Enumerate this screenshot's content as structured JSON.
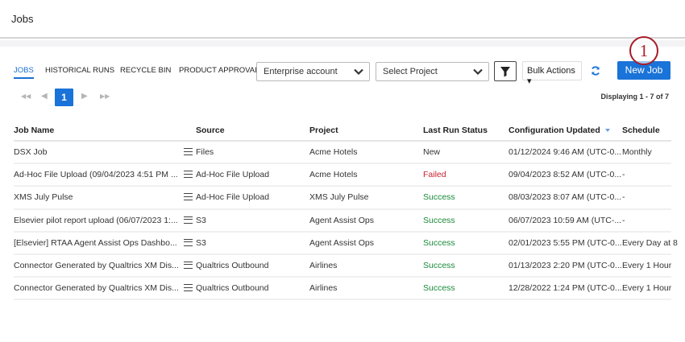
{
  "header": {
    "title": "Jobs"
  },
  "tabs": [
    {
      "label": "JOBS",
      "active": true
    },
    {
      "label": "HISTORICAL RUNS"
    },
    {
      "label": "RECYCLE BIN"
    },
    {
      "label": "PRODUCT APPROVAL"
    }
  ],
  "toolbar": {
    "account_select": "Enterprise account",
    "project_select": "Select Project",
    "filter_icon": "funnel-icon",
    "bulk_actions": "Bulk Actions ▾",
    "refresh_icon": "refresh-icon",
    "new_job": "New Job",
    "callout": "1"
  },
  "pagination": {
    "current": "1",
    "displaying": "Displaying 1 - 7 of 7"
  },
  "colors": {
    "accent": "#1a73d8",
    "failed": "#c8202f",
    "success": "#1a8a3a",
    "callout": "#a81c2a"
  },
  "table": {
    "columns": [
      "Job Name",
      "Source",
      "Project",
      "Last Run Status",
      "Configuration Updated",
      "Schedule"
    ],
    "sorted_column": "Configuration Updated",
    "rows": [
      {
        "name": "DSX Job",
        "source": "Files",
        "project": "Acme Hotels",
        "status": "New",
        "updated": "01/12/2024 9:46 AM (UTC-0...",
        "schedule": "Monthly"
      },
      {
        "name": "Ad-Hoc File Upload (09/04/2023 4:51 PM ...",
        "source": "Ad-Hoc File Upload",
        "project": "Acme Hotels",
        "status": "Failed",
        "updated": "09/04/2023 8:52 AM (UTC-0...",
        "schedule": "-"
      },
      {
        "name": "XMS July Pulse",
        "source": "Ad-Hoc File Upload",
        "project": "XMS July Pulse",
        "status": "Success",
        "updated": "08/03/2023 8:07 AM (UTC-0...",
        "schedule": "-"
      },
      {
        "name": "Elsevier pilot report upload (06/07/2023 1:...",
        "source": "S3",
        "project": "Agent Assist Ops",
        "status": "Success",
        "updated": "06/07/2023 10:59 AM (UTC-...",
        "schedule": "-"
      },
      {
        "name": "[Elsevier] RTAA Agent Assist Ops Dashbo...",
        "source": "S3",
        "project": "Agent Assist Ops",
        "status": "Success",
        "updated": "02/01/2023 5:55 PM (UTC-0...",
        "schedule": "Every Day at 8"
      },
      {
        "name": "Connector Generated by Qualtrics XM Dis...",
        "source": "Qualtrics Outbound",
        "project": "Airlines",
        "status": "Success",
        "updated": "01/13/2023 2:20 PM (UTC-0...",
        "schedule": "Every 1 Hour"
      },
      {
        "name": "Connector Generated by Qualtrics XM Dis...",
        "source": "Qualtrics Outbound",
        "project": "Airlines",
        "status": "Success",
        "updated": "12/28/2022 1:24 PM (UTC-0...",
        "schedule": "Every 1 Hour"
      }
    ]
  }
}
